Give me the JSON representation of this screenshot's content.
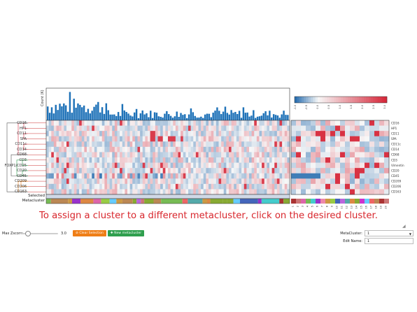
{
  "heatmap": {
    "count_label": "Count (K)",
    "markers": [
      "CD16",
      "HP1",
      "CD11",
      "SPA",
      "CD11c",
      "CD14",
      "CD68",
      "CD3",
      "FOXP1/CD25",
      "CD20",
      "CD45",
      "CD209",
      "CD206",
      "CD163"
    ],
    "right_markers": [
      "CD16",
      "HP1",
      "CD11",
      "SPA",
      "CD11c",
      "CD14",
      "CD68",
      "CD3",
      "Vimentin",
      "CD20",
      "CD45",
      "CD209",
      "CD206",
      "CD163"
    ],
    "bottom_rows": {
      "selected": "Selected",
      "metacluster": "Metacluster"
    },
    "colorbar_ticks": [
      "-1.0",
      "-0.5",
      "0.0",
      "0.5",
      "1.0",
      "1.5",
      "2.0",
      "2.5",
      "3.0"
    ],
    "right_cluster_ticks": [
      "1",
      "2",
      "3",
      "4",
      "5",
      "6",
      "7",
      "8",
      "9",
      "10",
      "11",
      "12",
      "13",
      "14",
      "15",
      "16",
      "17",
      "18",
      "19",
      "20"
    ],
    "colors": {
      "high": "#d6283a",
      "mid": "#f7f7f7",
      "low": "#2b6fb0",
      "bar": "#1f72b8"
    }
  },
  "instruction": "To assign a cluster to a different metacluster, click on the desired cluster.",
  "controls": {
    "max_zscore_label": "Max Zscore:",
    "max_zscore_value": "3.0",
    "clear_selection_label": "⊘ Clear Selection",
    "new_metacluster_label": "✚ New metacluster",
    "metacluster_label": "MetaCluster:",
    "metacluster_value": "1",
    "edit_name_label": "Edit Name:",
    "edit_name_value": "1"
  }
}
